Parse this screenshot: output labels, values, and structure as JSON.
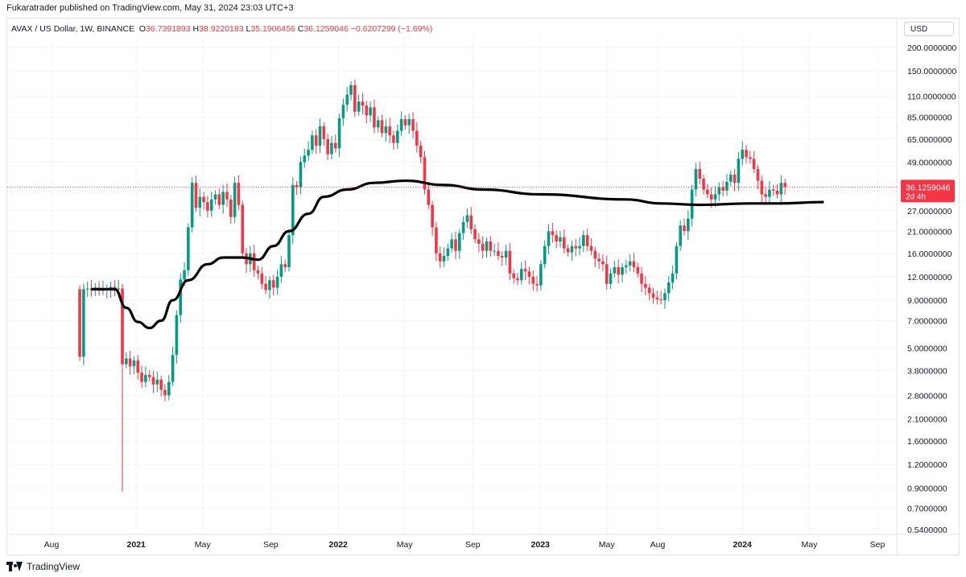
{
  "header": {
    "published_by": "Fukaratrader published on TradingView.com, May 31, 2024 23:03 UTC+3"
  },
  "legend": {
    "symbol": "AVAX / US Dollar, 1W, BINANCE",
    "o_label": "O",
    "o_value": "36.7391893",
    "h_label": "H",
    "h_value": "38.9220183",
    "l_label": "L",
    "l_value": "35.1906456",
    "c_label": "C",
    "c_value": "36.1259046",
    "change": "−0.6207299 (−1.69%)"
  },
  "currency_button": "USD",
  "price_tag": {
    "value": "36.1259046",
    "countdown": "2d 4h",
    "color": "#f23645"
  },
  "footer": {
    "brand": "TradingView"
  },
  "colors": {
    "up": "#089981",
    "down": "#f23645",
    "ma": "#000000",
    "grid": "#e0e3eb"
  },
  "chart_data": {
    "type": "candlestick",
    "scale": "log",
    "ylim": [
      0.5,
      210
    ],
    "y_ticks": [
      "200.0000000",
      "150.0000000",
      "110.0000000",
      "85.0000000",
      "65.0000000",
      "49.0000000",
      "27.0000000",
      "21.0000000",
      "16.0000000",
      "12.0000000",
      "9.0000000",
      "7.0000000",
      "5.0000000",
      "3.8000000",
      "2.8000000",
      "2.1000000",
      "1.6000000",
      "1.2000000",
      "0.9000000",
      "0.7000000",
      "0.5400000"
    ],
    "x_ticks": [
      {
        "label": "Aug",
        "date": "2020-08-01"
      },
      {
        "label": "2021",
        "date": "2021-01-01"
      },
      {
        "label": "May",
        "date": "2021-05-01"
      },
      {
        "label": "Sep",
        "date": "2021-09-01"
      },
      {
        "label": "2022",
        "date": "2022-01-01"
      },
      {
        "label": "May",
        "date": "2022-05-01"
      },
      {
        "label": "Sep",
        "date": "2022-09-01"
      },
      {
        "label": "2023",
        "date": "2023-01-01"
      },
      {
        "label": "May",
        "date": "2023-05-01"
      },
      {
        "label": "Aug",
        "date": "2023-08-01"
      },
      {
        "label": "2024",
        "date": "2024-01-01"
      },
      {
        "label": "May",
        "date": "2024-05-01"
      },
      {
        "label": "Sep",
        "date": "2024-09-01"
      }
    ],
    "start_date": "2020-09-21",
    "close": [
      4.5,
      10.3,
      10.4,
      10.2,
      10.5,
      10.1,
      10.4,
      10.2,
      10.6,
      10.3,
      10.4,
      4.1,
      4.4,
      4.0,
      4.3,
      3.7,
      3.3,
      3.6,
      3.5,
      3.2,
      3.4,
      3.0,
      2.8,
      3.3,
      4.6,
      7.5,
      11.6,
      13.0,
      22.0,
      38.0,
      28.0,
      32.0,
      30.0,
      27.0,
      31.0,
      33.0,
      29.0,
      34.0,
      31.0,
      25.0,
      38.0,
      29.0,
      16.0,
      14.0,
      16.0,
      13.0,
      12.5,
      11.0,
      10.2,
      11.5,
      10.5,
      12.0,
      14.0,
      13.5,
      20.0,
      37.0,
      36.0,
      49.0,
      53.0,
      57.0,
      68.0,
      60.0,
      76.0,
      65.0,
      54.0,
      62.0,
      58.0,
      84.0,
      99.0,
      112.0,
      126.0,
      91.0,
      103.0,
      98.0,
      87.0,
      96.0,
      75.0,
      82.0,
      70.0,
      76.0,
      68.0,
      62.0,
      72.0,
      83.0,
      77.0,
      83.0,
      72.0,
      60.0,
      52.0,
      35.0,
      29.0,
      22.0,
      16.0,
      14.5,
      15.5,
      17.0,
      19.0,
      16.5,
      20.5,
      23.5,
      25.5,
      21.5,
      19.0,
      18.0,
      16.5,
      18.5,
      16.5,
      16.5,
      15.5,
      15.2,
      16.5,
      12.5,
      11.8,
      11.5,
      13.2,
      12.8,
      12.0,
      11.0,
      10.8,
      14.0,
      17.5,
      21.0,
      20.0,
      18.5,
      19.5,
      17.0,
      16.2,
      17.5,
      17.0,
      17.5,
      20.0,
      17.5,
      16.5,
      15.0,
      14.5,
      14.0,
      11.0,
      12.5,
      13.5,
      12.3,
      13.5,
      13.8,
      14.5,
      13.5,
      12.5,
      11.0,
      10.5,
      9.8,
      9.3,
      9.1,
      9.0,
      9.8,
      11.2,
      12.5,
      17.5,
      22.5,
      21.0,
      24.5,
      35.0,
      45.0,
      40.0,
      35.0,
      33.0,
      31.0,
      33.0,
      36.0,
      34.5,
      38.5,
      42.0,
      38.0,
      51.0,
      57.0,
      52.0,
      51.0,
      45.0,
      39.0,
      33.0,
      32.0,
      35.0,
      34.5,
      33.0,
      38.0,
      36.1
    ],
    "ma": [
      {
        "date": "2020-10-12",
        "value": 10.3
      },
      {
        "date": "2020-11-23",
        "value": 10.3
      },
      {
        "date": "2020-12-14",
        "value": 8.2
      },
      {
        "date": "2021-01-04",
        "value": 6.9
      },
      {
        "date": "2021-01-25",
        "value": 6.4
      },
      {
        "date": "2021-02-15",
        "value": 7.0
      },
      {
        "date": "2021-03-08",
        "value": 9.0
      },
      {
        "date": "2021-04-05",
        "value": 11.5
      },
      {
        "date": "2021-05-10",
        "value": 14.0
      },
      {
        "date": "2021-06-07",
        "value": 15.2
      },
      {
        "date": "2021-07-12",
        "value": 15.2
      },
      {
        "date": "2021-08-09",
        "value": 14.8
      },
      {
        "date": "2021-09-06",
        "value": 17.5
      },
      {
        "date": "2021-10-04",
        "value": 21.0
      },
      {
        "date": "2021-11-08",
        "value": 26.0
      },
      {
        "date": "2021-12-06",
        "value": 32.0
      },
      {
        "date": "2022-01-17",
        "value": 35.0
      },
      {
        "date": "2022-03-07",
        "value": 38.0
      },
      {
        "date": "2022-05-02",
        "value": 39.0
      },
      {
        "date": "2022-07-11",
        "value": 37.0
      },
      {
        "date": "2022-09-19",
        "value": 35.0
      },
      {
        "date": "2023-01-02",
        "value": 33.0
      },
      {
        "date": "2023-06-05",
        "value": 31.0
      },
      {
        "date": "2023-08-07",
        "value": 29.5
      },
      {
        "date": "2023-10-16",
        "value": 29.0
      },
      {
        "date": "2024-01-15",
        "value": 29.5
      },
      {
        "date": "2024-03-04",
        "value": 29.5
      },
      {
        "date": "2024-05-27",
        "value": 30.0
      }
    ]
  }
}
